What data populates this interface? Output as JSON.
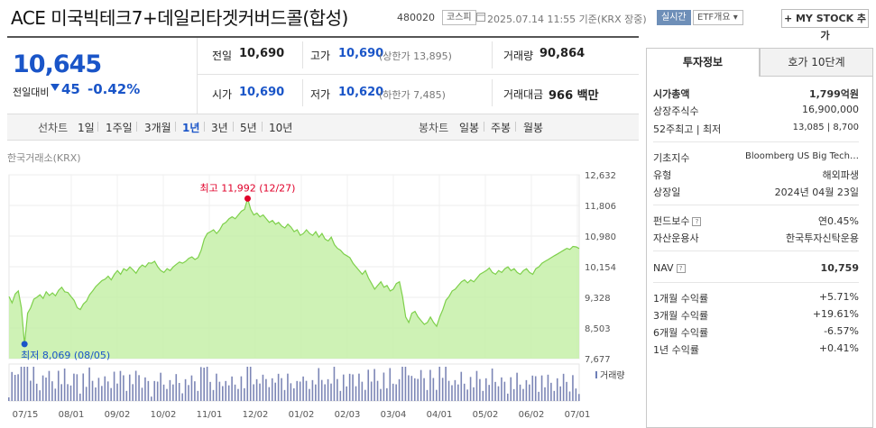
{
  "header": {
    "title": "ACE 미국빅테크7+데일리타겟커버드콜(합성)",
    "code": "480020",
    "market_tag": "코스피",
    "date_text": "2025.07.14 11:55 기준(KRX 장중)",
    "realtime_tag": "실시간",
    "etf_info_tag": "ETF개요",
    "mystock_label": "+ MY STOCK 추가"
  },
  "price": {
    "current": "10,645",
    "change_label": "전일대비",
    "change_value": "45",
    "change_pct": "-0.42%",
    "prev_close_label": "전일",
    "prev_close": "10,690",
    "high_label": "고가",
    "high": "10,690",
    "upper_limit": "(상한가 13,895)",
    "volume_label": "거래량",
    "volume": "90,864",
    "open_label": "시가",
    "open": "10,690",
    "low_label": "저가",
    "low": "10,620",
    "lower_limit": "(하한가 7,485)",
    "amount_label": "거래대금",
    "amount": "966 백만"
  },
  "period_bar": {
    "line_chart_label": "선차트",
    "periods": [
      "1일",
      "1주일",
      "3개월",
      "1년",
      "3년",
      "5년",
      "10년"
    ],
    "selected": "1년",
    "candle_label": "봉차트",
    "candles": [
      "일봉",
      "주봉",
      "월봉"
    ]
  },
  "chart_data": {
    "type": "area",
    "source_label": "한국거래소(KRX)",
    "y_ticks": [
      "12,632",
      "11,806",
      "10,980",
      "10,154",
      "9,328",
      "8,503",
      "7,677"
    ],
    "ylim": [
      7677,
      12632
    ],
    "x_ticks": [
      "07/15",
      "08/01",
      "09/02",
      "10/02",
      "11/01",
      "12/02",
      "01/02",
      "02/03",
      "03/04",
      "04/01",
      "05/02",
      "06/02",
      "07/01"
    ],
    "high_label": "최고 11,992 (12/27)",
    "low_label": "최저 8,069 (08/05)",
    "volume_legend": "거래량",
    "values": [
      9350,
      9180,
      9420,
      9500,
      9050,
      8069,
      8900,
      9050,
      9280,
      9330,
      9400,
      9300,
      9480,
      9380,
      9450,
      9370,
      9520,
      9600,
      9480,
      9460,
      9350,
      9250,
      9050,
      9000,
      9150,
      9230,
      9400,
      9500,
      9620,
      9700,
      9780,
      9820,
      9900,
      9800,
      9950,
      10050,
      9950,
      10100,
      10050,
      10150,
      10070,
      9980,
      10120,
      10200,
      10150,
      10260,
      10250,
      10300,
      10150,
      10050,
      10000,
      10100,
      10050,
      10150,
      10220,
      10280,
      10250,
      10300,
      10380,
      10420,
      10350,
      10400,
      10600,
      10900,
      11050,
      11100,
      11150,
      11050,
      11150,
      11300,
      11350,
      11450,
      11500,
      11450,
      11550,
      11650,
      11700,
      11992,
      11700,
      11550,
      11600,
      11500,
      11550,
      11450,
      11350,
      11400,
      11300,
      11350,
      11250,
      11200,
      11300,
      11220,
      11100,
      11150,
      11000,
      11050,
      11150,
      11050,
      11000,
      11100,
      10950,
      11050,
      10900,
      10850,
      10950,
      10750,
      10650,
      10600,
      10500,
      10450,
      10400,
      10250,
      10150,
      10050,
      9950,
      10050,
      9850,
      9700,
      9550,
      9650,
      9750,
      9600,
      9650,
      9500,
      9550,
      9700,
      9750,
      9350,
      8800,
      8650,
      8900,
      8950,
      8800,
      8700,
      8600,
      8650,
      8800,
      8650,
      8550,
      8800,
      9000,
      9250,
      9350,
      9500,
      9550,
      9650,
      9750,
      9800,
      9720,
      9800,
      9750,
      9850,
      9950,
      10000,
      10050,
      10120,
      10000,
      9950,
      10050,
      10000,
      10100,
      10150,
      10050,
      10100,
      10000,
      9950,
      10050,
      10100,
      10000,
      9950,
      10100,
      10150,
      10250,
      10300,
      10350,
      10400,
      10450,
      10500,
      10550,
      10600,
      10650,
      10620,
      10700,
      10690,
      10645
    ]
  },
  "right_panel": {
    "tabs": [
      "투자정보",
      "호가 10단계"
    ],
    "rows1": [
      {
        "label": "시가총액",
        "value": "1,799억원"
      },
      {
        "label": "상장주식수",
        "value": "16,900,000"
      },
      {
        "label": "52주최고 | 최저",
        "value": "13,085 | 8,700"
      }
    ],
    "rows2": [
      {
        "label": "기초지수",
        "value": "Bloomberg US Big Tech…"
      },
      {
        "label": "유형",
        "value": "해외파생"
      },
      {
        "label": "상장일",
        "value": "2024년 04월 23일"
      }
    ],
    "rows3": [
      {
        "label": "펀드보수",
        "value": "연0.45%"
      },
      {
        "label": "자산운용사",
        "value": "한국투자신탁운용"
      }
    ],
    "nav": {
      "label": "NAV",
      "value": "10,759"
    },
    "returns": [
      {
        "label": "1개월 수익률",
        "value": "+5.71%"
      },
      {
        "label": "3개월 수익률",
        "value": "+19.61%"
      },
      {
        "label": "6개월 수익률",
        "value": "-6.57%"
      },
      {
        "label": "1년 수익률",
        "value": "+0.41%"
      }
    ]
  },
  "colors": {
    "up": "#e0002a",
    "down": "#1a55c8",
    "area_fill": "#c6f0a8",
    "line": "#7ed04b"
  }
}
